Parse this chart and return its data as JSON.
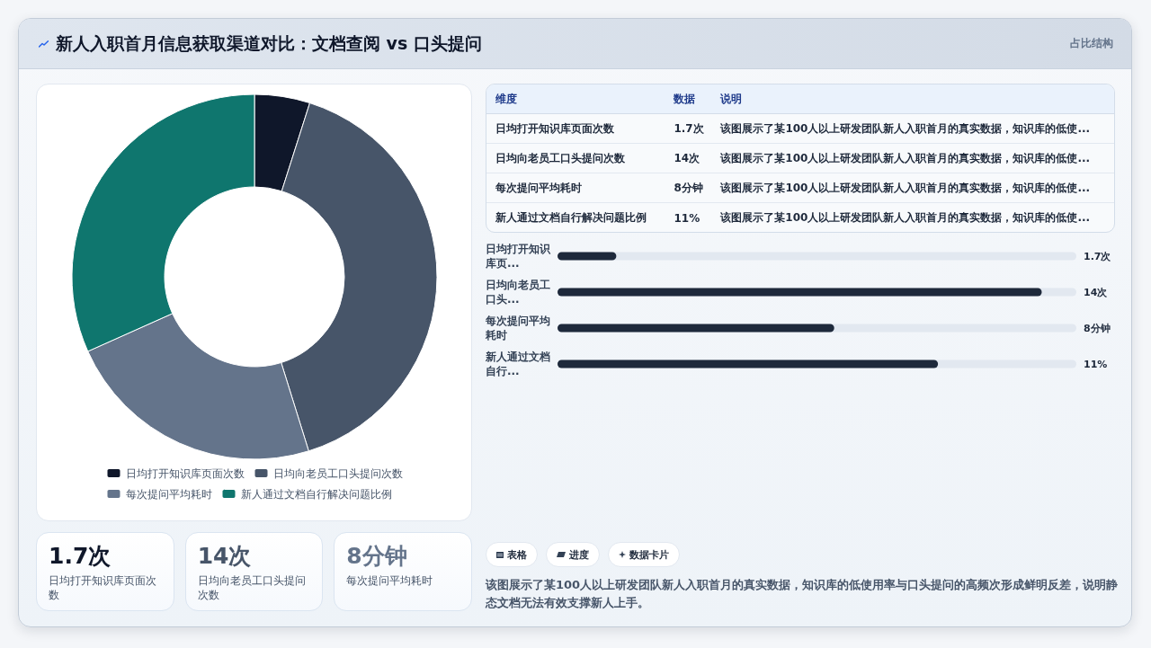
{
  "chart_data": [
    {
      "type": "donut",
      "title": "新人入职首月信息获取渠道对比：文档查阅 vs 口头提问",
      "annotations": [
        "占比结构"
      ],
      "categories": [
        "日均打开知识库页面次数",
        "日均向老员工口头提问次数",
        "每次提问平均耗时",
        "新人通过文档自行解决问题比例"
      ],
      "values": [
        4.9,
        40.3,
        23.1,
        31.7
      ],
      "colors": [
        "#0f172a",
        "#475569",
        "#64748b",
        "#0f766e"
      ],
      "legend": "bottom"
    },
    {
      "type": "other",
      "ylabel": "维度",
      "categories": [
        "数据",
        "说明"
      ],
      "y_categories": [
        "日均打开知识库页面次数",
        "日均向老员工口头提问次数",
        "每次提问平均耗时",
        "新人通过文档自行解决问题比例"
      ],
      "cell_labels": [
        [
          "1.7次",
          "该图展示了某100人以上研发团队新人入职首月的真实数据，知识库的低使..."
        ],
        [
          "14次",
          "该图展示了某100人以上研发团队新人入职首月的真实数据，知识库的低使..."
        ],
        [
          "8分钟",
          "该图展示了某100人以上研发团队新人入职首月的真实数据，知识库的低使..."
        ],
        [
          "11%",
          "该图展示了某100人以上研发团队新人入职首月的真实数据，知识库的低使..."
        ]
      ]
    },
    {
      "type": "bar",
      "orientation": "horizontal",
      "categories": [
        "日均打开知识库页...",
        "日均向老员工口头...",
        "每次提问平均耗时",
        "新人通过文档自行..."
      ],
      "values": [
        1.7,
        14,
        8,
        11
      ],
      "value_labels": [
        "1.7次",
        "14次",
        "8分钟",
        "11%"
      ],
      "color": "#1e293b",
      "tick_labels": "y"
    },
    {
      "type": "other",
      "categories": [
        "日均打开知识库页面次数",
        "日均向老员工口头提问次数",
        "每次提问平均耗时"
      ],
      "value_labels": [
        "1.7次",
        "14次",
        "8分钟"
      ]
    },
    {
      "type": "other",
      "categories": [
        "表格",
        "进度",
        "数据卡片"
      ],
      "annotations": [
        "该图展示了某100人以上研发团队新人入职首月的真实数据，知识库的低使用率与口头提问的高频次形成鲜明反差，说明静态文档无法有效支撑新人上手。"
      ]
    }
  ]
}
